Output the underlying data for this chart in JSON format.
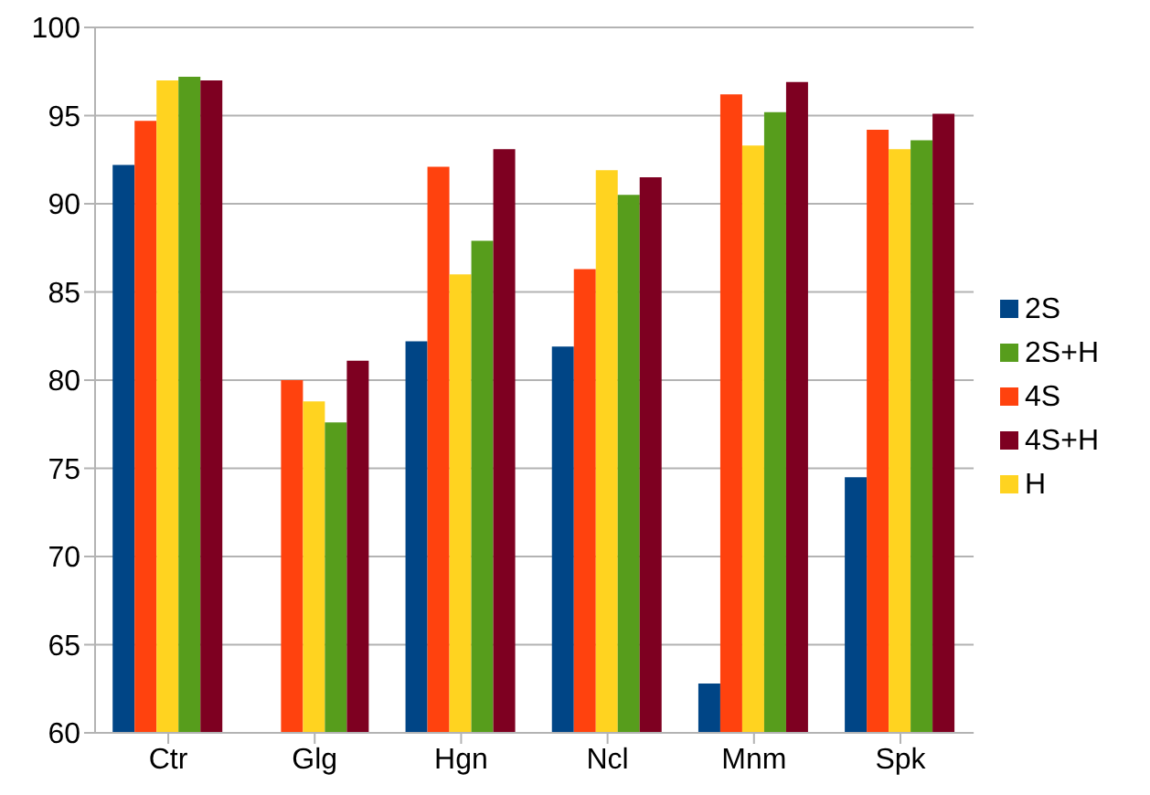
{
  "chart_data": {
    "type": "bar",
    "categories": [
      "Ctr",
      "Glg",
      "Hgn",
      "Ncl",
      "Mnm",
      "Spk"
    ],
    "series": [
      {
        "name": "2S",
        "color": "#004586",
        "values": [
          92.2,
          null,
          82.2,
          81.9,
          62.8,
          74.5
        ]
      },
      {
        "name": "4S",
        "color": "#ff420e",
        "values": [
          94.7,
          80.0,
          92.1,
          86.3,
          96.2,
          94.2
        ]
      },
      {
        "name": "H",
        "color": "#ffd320",
        "values": [
          97.0,
          78.8,
          86.0,
          91.9,
          93.3,
          93.1
        ]
      },
      {
        "name": "2S+H",
        "color": "#579d1c",
        "values": [
          97.2,
          77.6,
          87.9,
          90.5,
          95.2,
          93.6
        ]
      },
      {
        "name": "4S+H",
        "color": "#7e0021",
        "values": [
          97.0,
          81.1,
          93.1,
          91.5,
          96.9,
          95.1
        ]
      }
    ],
    "ylim": [
      60,
      100
    ],
    "yticks": [
      60,
      65,
      70,
      75,
      80,
      85,
      90,
      95,
      100
    ],
    "grid": "y",
    "legend": "right"
  }
}
